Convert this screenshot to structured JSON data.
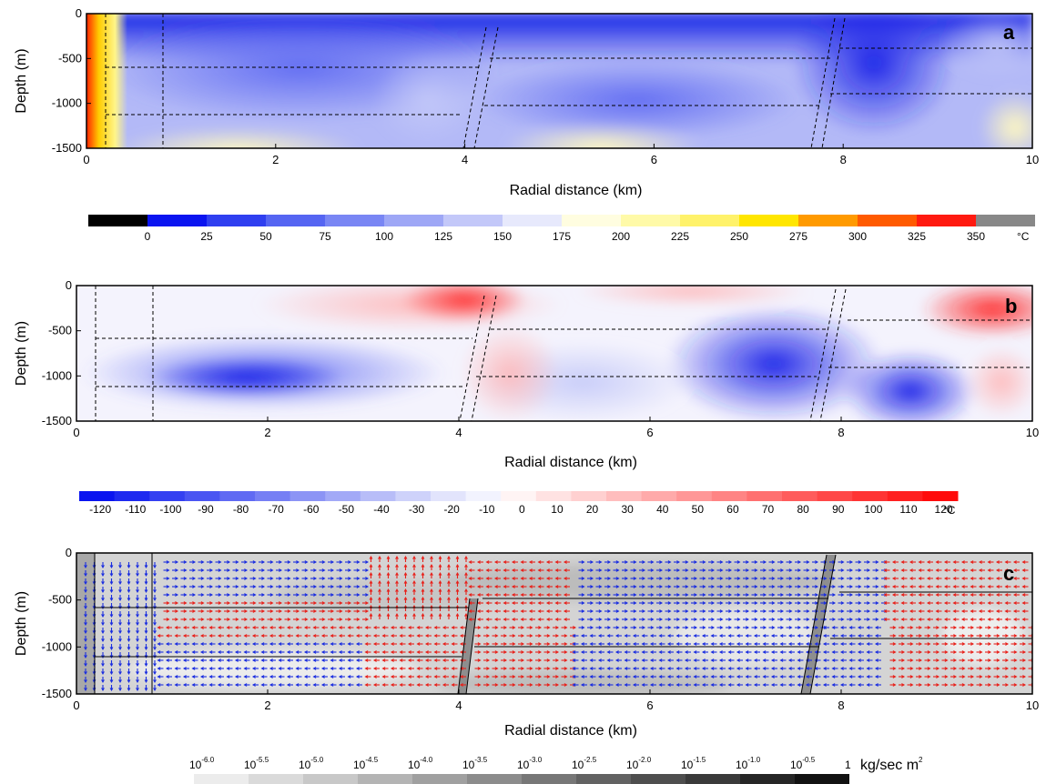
{
  "chart_data": [
    {
      "type": "heatmap",
      "panel": "a",
      "xlabel": "Radial distance (km)",
      "ylabel": "Depth (m)",
      "xlim": [
        0,
        10
      ],
      "ylim": [
        -1500,
        0
      ],
      "xticks": [
        "0",
        "2",
        "4",
        "6",
        "8",
        "10"
      ],
      "yticks": [
        "0",
        "-500",
        "-1000",
        "-1500"
      ],
      "colorbar": {
        "labels": [
          "0",
          "25",
          "50",
          "75",
          "100",
          "125",
          "150",
          "175",
          "200",
          "225",
          "250",
          "275",
          "300",
          "325",
          "350"
        ],
        "unit": "°C",
        "colors": [
          "#000000",
          "#0a14f0",
          "#2f3ff0",
          "#5565f2",
          "#7986f4",
          "#9ea7f6",
          "#c3c8f9",
          "#e7e9fc",
          "#fffde0",
          "#fffaa8",
          "#fff26a",
          "#ffe600",
          "#ff9a00",
          "#ff5a00",
          "#ff1a10",
          "#888888"
        ]
      },
      "fault_lines_km": [
        4.2,
        7.8
      ],
      "layer_boundaries_m": [
        -600,
        -1100,
        -500,
        -1000,
        -400,
        -900
      ]
    },
    {
      "type": "heatmap",
      "panel": "b",
      "xlabel": "Radial distance (km)",
      "ylabel": "Depth (m)",
      "xlim": [
        0,
        10
      ],
      "ylim": [
        -1500,
        0
      ],
      "xticks": [
        "0",
        "2",
        "4",
        "6",
        "8",
        "10"
      ],
      "yticks": [
        "0",
        "-500",
        "-1000",
        "-1500"
      ],
      "colorbar": {
        "labels": [
          "-120",
          "-110",
          "-100",
          "-90",
          "-80",
          "-70",
          "-60",
          "-50",
          "-40",
          "-30",
          "-20",
          "-10",
          "0",
          "10",
          "20",
          "30",
          "40",
          "50",
          "60",
          "70",
          "80",
          "90",
          "100",
          "110",
          "120"
        ],
        "unit": "°C",
        "colors": [
          "#0a14f0",
          "#1e2af0",
          "#3440f1",
          "#4a55f2",
          "#606af3",
          "#767ff4",
          "#8c94f5",
          "#a2a9f7",
          "#b8bdf8",
          "#ced2fa",
          "#e2e4fc",
          "#f2f3fe",
          "#fff4f4",
          "#ffe2e2",
          "#ffd0d0",
          "#ffbdbd",
          "#ffaaaa",
          "#ff9797",
          "#ff8484",
          "#ff7070",
          "#ff5c5c",
          "#ff4848",
          "#ff3434",
          "#ff2020",
          "#ff0c0c"
        ]
      }
    },
    {
      "type": "heatmap",
      "panel": "c",
      "xlabel": "Radial distance (km)",
      "ylabel": "Depth (m)",
      "xlim": [
        0,
        10
      ],
      "ylim": [
        -1500,
        0
      ],
      "xticks": [
        "0",
        "2",
        "4",
        "6",
        "8",
        "10"
      ],
      "yticks": [
        "0",
        "-500",
        "-1000",
        "-1500"
      ],
      "vector_colors": {
        "downward": "#1a2de0",
        "upward": "#e8201a"
      },
      "colorbar": {
        "labels": [
          "10",
          "10",
          "10",
          "10",
          "10",
          "10",
          "10",
          "10",
          "10",
          "10",
          "10",
          "10",
          "1"
        ],
        "exponents": [
          "-6.0",
          "-5.5",
          "-5.0",
          "-4.5",
          "-4.0",
          "-3.5",
          "-3.0",
          "-2.5",
          "-2.0",
          "-1.5",
          "-1.0",
          "-0.5",
          ""
        ],
        "unit": "kg/sec m",
        "unit_sup": "2",
        "colors": [
          "#ececec",
          "#dadada",
          "#c8c8c8",
          "#b4b4b4",
          "#a0a0a0",
          "#8c8c8c",
          "#777777",
          "#626262",
          "#4e4e4e",
          "#3a3a3a",
          "#262626",
          "#121212"
        ]
      }
    }
  ]
}
